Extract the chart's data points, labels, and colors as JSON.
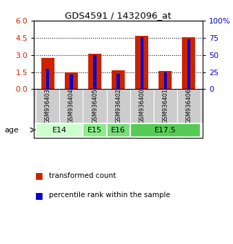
{
  "title": "GDS4591 / 1432096_at",
  "samples": [
    "GSM936403",
    "GSM936404",
    "GSM936405",
    "GSM936402",
    "GSM936400",
    "GSM936401",
    "GSM936406"
  ],
  "transformed_counts": [
    2.75,
    1.5,
    3.1,
    1.65,
    4.65,
    1.62,
    4.57
  ],
  "percentile_ranks": [
    30,
    22,
    50,
    23,
    76,
    25,
    73
  ],
  "age_groups": [
    {
      "label": "E14",
      "span": [
        0,
        2
      ],
      "color": "#ccffcc"
    },
    {
      "label": "E15",
      "span": [
        2,
        3
      ],
      "color": "#88ee88"
    },
    {
      "label": "E16",
      "span": [
        3,
        4
      ],
      "color": "#77dd77"
    },
    {
      "label": "E17.5",
      "span": [
        4,
        7
      ],
      "color": "#55cc55"
    }
  ],
  "bar_color_red": "#cc2200",
  "bar_color_blue": "#0000cc",
  "ylim_left": [
    0,
    6
  ],
  "ylim_right": [
    0,
    100
  ],
  "yticks_left": [
    0,
    1.5,
    3.0,
    4.5,
    6
  ],
  "yticks_right": [
    0,
    25,
    50,
    75,
    100
  ],
  "bg_color": "#ffffff",
  "sample_bg": "#cccccc",
  "red_bar_width": 0.55,
  "blue_bar_width": 0.12
}
